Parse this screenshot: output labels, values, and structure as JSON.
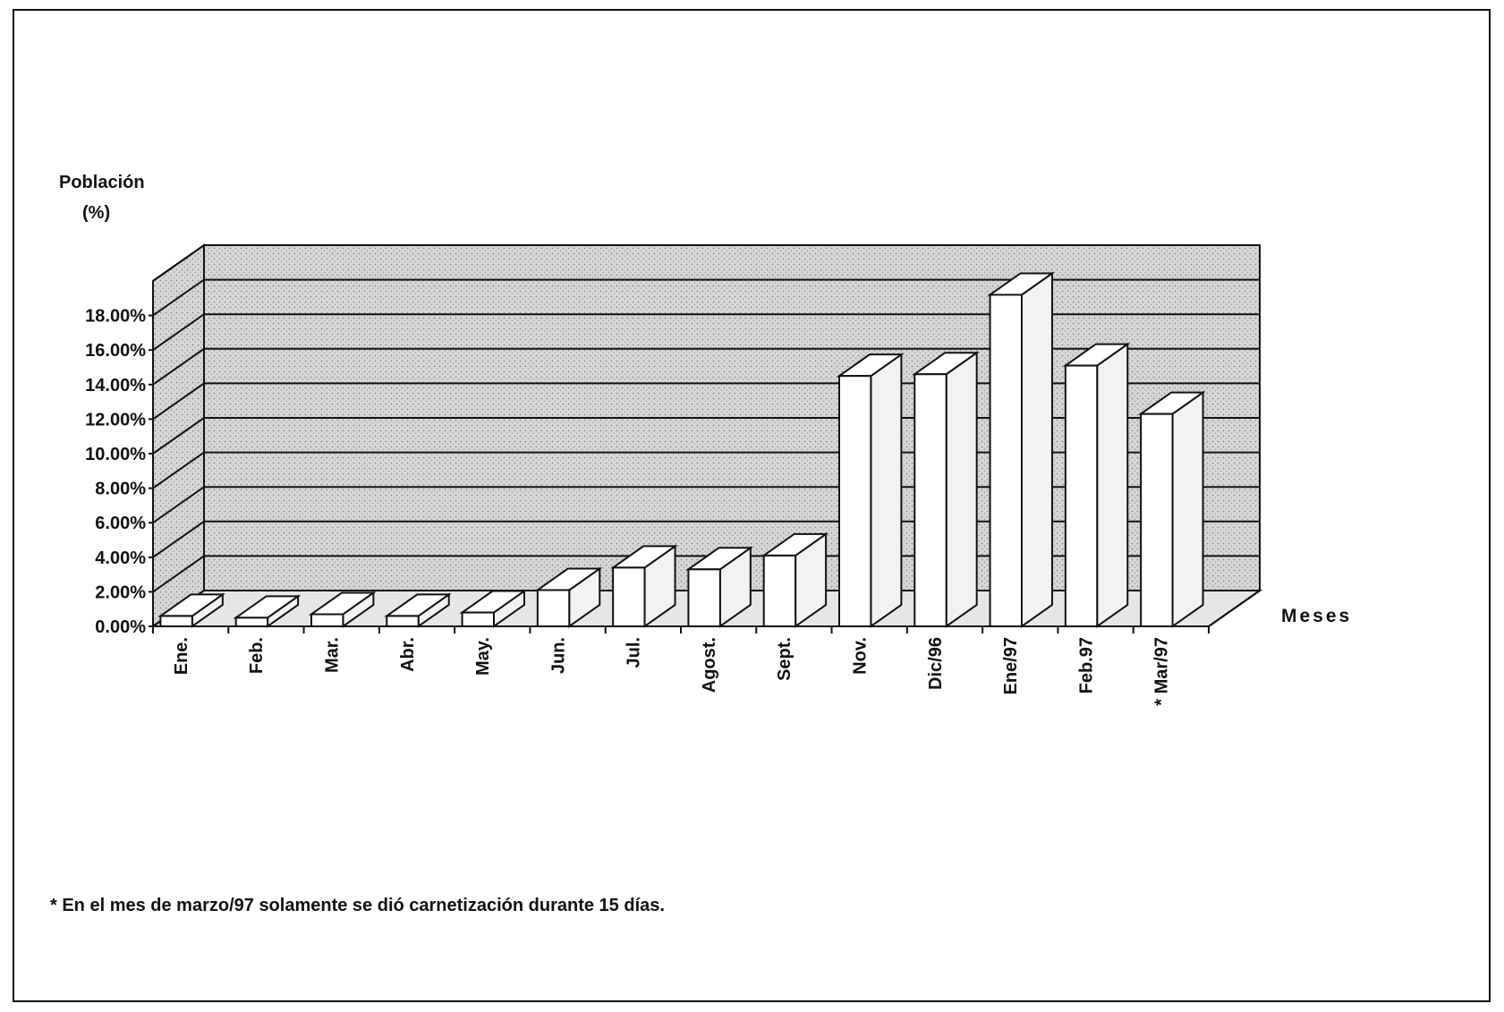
{
  "chart_data": {
    "type": "bar",
    "title": "",
    "ylabel_line1": "Población",
    "ylabel_line2": "(%)",
    "xlabel": "Meses",
    "categories": [
      "Ene.",
      "Feb.",
      "Mar.",
      "Abr.",
      "May.",
      "Jun.",
      "Jul.",
      "Agost.",
      "Sept.",
      "Nov.",
      "Dic/96",
      "Ene/97",
      "Feb.97",
      "* Mar/97"
    ],
    "values": [
      0.6,
      0.5,
      0.7,
      0.6,
      0.8,
      2.1,
      3.4,
      3.3,
      4.1,
      14.5,
      14.6,
      19.2,
      15.1,
      12.3
    ],
    "y_ticks": [
      "0.00%",
      "2.00%",
      "4.00%",
      "6.00%",
      "8.00%",
      "10.00%",
      "12.00%",
      "14.00%",
      "16.00%",
      "18.00%"
    ],
    "ylim": [
      0,
      20
    ],
    "grid": true,
    "colors": {
      "bar_face": "#ffffff",
      "bar_edge": "#111111",
      "wall": "#d2d2d2",
      "stroke": "#111111"
    }
  },
  "footnote": "* En el mes de marzo/97 solamente se dió carnetización durante 15 días."
}
